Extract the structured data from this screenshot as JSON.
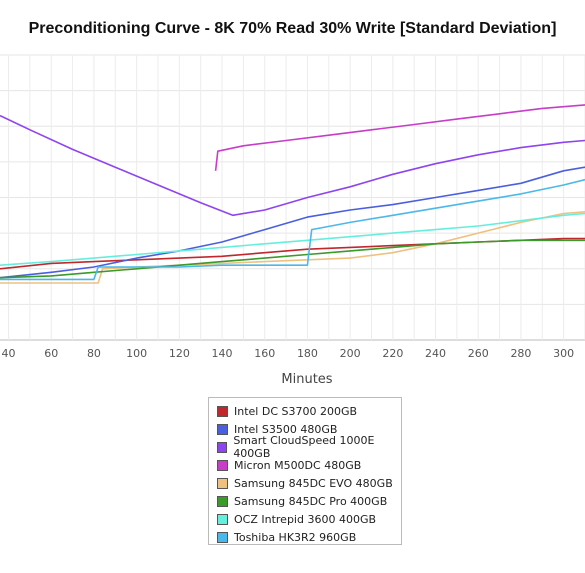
{
  "chart_data": {
    "type": "line",
    "title": "Preconditioning Curve - 8K 70% Read 30% Write [Standard Deviation]",
    "xlabel": "Minutes",
    "ylabel": "",
    "x_ticks": [
      40,
      60,
      80,
      100,
      120,
      140,
      160,
      180,
      200,
      220,
      240,
      260,
      280,
      300
    ],
    "xlim": [
      36,
      310
    ],
    "ylim": [
      0,
      8
    ],
    "grid": true,
    "legend_position": "bottom-center",
    "series": [
      {
        "name": "Intel DC S3700 200GB",
        "color": "#c0282d",
        "points": [
          [
            36,
            2.0
          ],
          [
            60,
            2.15
          ],
          [
            80,
            2.2
          ],
          [
            100,
            2.25
          ],
          [
            120,
            2.3
          ],
          [
            140,
            2.35
          ],
          [
            160,
            2.45
          ],
          [
            180,
            2.55
          ],
          [
            200,
            2.6
          ],
          [
            220,
            2.65
          ],
          [
            240,
            2.7
          ],
          [
            260,
            2.75
          ],
          [
            280,
            2.8
          ],
          [
            300,
            2.85
          ],
          [
            310,
            2.85
          ]
        ]
      },
      {
        "name": "Intel S3500 480GB",
        "color": "#4a5fe0",
        "points": [
          [
            36,
            1.75
          ],
          [
            60,
            1.9
          ],
          [
            80,
            2.05
          ],
          [
            100,
            2.3
          ],
          [
            120,
            2.5
          ],
          [
            140,
            2.75
          ],
          [
            160,
            3.1
          ],
          [
            180,
            3.45
          ],
          [
            200,
            3.65
          ],
          [
            220,
            3.8
          ],
          [
            240,
            4.0
          ],
          [
            260,
            4.2
          ],
          [
            280,
            4.4
          ],
          [
            300,
            4.75
          ],
          [
            310,
            4.85
          ]
        ]
      },
      {
        "name": "Smart CloudSpeed 1000E 400GB",
        "color": "#8e44f0",
        "points": [
          [
            36,
            6.3
          ],
          [
            50,
            5.9
          ],
          [
            70,
            5.35
          ],
          [
            90,
            4.85
          ],
          [
            110,
            4.35
          ],
          [
            130,
            3.85
          ],
          [
            145,
            3.5
          ],
          [
            160,
            3.65
          ],
          [
            180,
            4.0
          ],
          [
            200,
            4.3
          ],
          [
            220,
            4.65
          ],
          [
            240,
            4.95
          ],
          [
            260,
            5.2
          ],
          [
            280,
            5.4
          ],
          [
            300,
            5.55
          ],
          [
            310,
            5.6
          ]
        ]
      },
      {
        "name": "Micron M500DC 480GB",
        "color": "#c83cc8",
        "points": [
          [
            137,
            4.75
          ],
          [
            138,
            5.3
          ],
          [
            150,
            5.45
          ],
          [
            170,
            5.6
          ],
          [
            190,
            5.75
          ],
          [
            210,
            5.9
          ],
          [
            230,
            6.05
          ],
          [
            250,
            6.2
          ],
          [
            270,
            6.35
          ],
          [
            290,
            6.5
          ],
          [
            310,
            6.6
          ]
        ]
      },
      {
        "name": "Samsung 845DC EVO 480GB",
        "color": "#f0c080",
        "points": [
          [
            36,
            1.6
          ],
          [
            82,
            1.6
          ],
          [
            84,
            2.0
          ],
          [
            100,
            2.05
          ],
          [
            120,
            2.1
          ],
          [
            140,
            2.15
          ],
          [
            160,
            2.2
          ],
          [
            180,
            2.25
          ],
          [
            200,
            2.3
          ],
          [
            220,
            2.45
          ],
          [
            240,
            2.7
          ],
          [
            260,
            3.0
          ],
          [
            280,
            3.3
          ],
          [
            300,
            3.55
          ],
          [
            310,
            3.6
          ]
        ]
      },
      {
        "name": "Samsung 845DC Pro 400GB",
        "color": "#3a9a2a",
        "points": [
          [
            36,
            1.75
          ],
          [
            60,
            1.8
          ],
          [
            80,
            1.9
          ],
          [
            100,
            2.0
          ],
          [
            120,
            2.1
          ],
          [
            140,
            2.2
          ],
          [
            160,
            2.3
          ],
          [
            180,
            2.4
          ],
          [
            200,
            2.5
          ],
          [
            220,
            2.6
          ],
          [
            240,
            2.7
          ],
          [
            260,
            2.75
          ],
          [
            280,
            2.8
          ],
          [
            300,
            2.8
          ],
          [
            310,
            2.8
          ]
        ]
      },
      {
        "name": "OCZ Intrepid 3600 400GB",
        "color": "#66eedd",
        "points": [
          [
            36,
            2.1
          ],
          [
            60,
            2.2
          ],
          [
            80,
            2.3
          ],
          [
            100,
            2.4
          ],
          [
            120,
            2.5
          ],
          [
            140,
            2.6
          ],
          [
            160,
            2.7
          ],
          [
            180,
            2.8
          ],
          [
            200,
            2.9
          ],
          [
            220,
            3.0
          ],
          [
            240,
            3.1
          ],
          [
            260,
            3.2
          ],
          [
            280,
            3.35
          ],
          [
            300,
            3.5
          ],
          [
            310,
            3.55
          ]
        ]
      },
      {
        "name": "Toshiba HK3R2 960GB",
        "color": "#4ab8ea",
        "points": [
          [
            36,
            1.7
          ],
          [
            80,
            1.7
          ],
          [
            82,
            2.05
          ],
          [
            100,
            2.05
          ],
          [
            120,
            2.05
          ],
          [
            140,
            2.1
          ],
          [
            160,
            2.1
          ],
          [
            180,
            2.1
          ],
          [
            182,
            3.1
          ],
          [
            200,
            3.3
          ],
          [
            220,
            3.5
          ],
          [
            240,
            3.7
          ],
          [
            260,
            3.9
          ],
          [
            280,
            4.1
          ],
          [
            300,
            4.35
          ],
          [
            310,
            4.5
          ]
        ]
      }
    ]
  }
}
